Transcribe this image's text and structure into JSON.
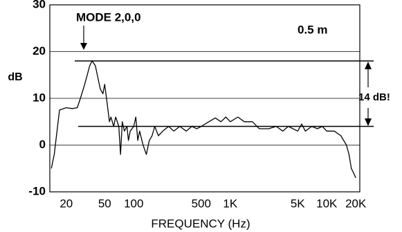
{
  "chart_data": {
    "type": "line",
    "ylabel": "dB",
    "xlabel": "FREQUENCY  (Hz)",
    "peak_label": "MODE 2,0,0",
    "distance_label": "0.5 m",
    "range_label": "14 dB!",
    "x": [
      14,
      15,
      17,
      20,
      23,
      26,
      28,
      31,
      35,
      37,
      40,
      45,
      48,
      50,
      53,
      56,
      58,
      62,
      65,
      70,
      73,
      76,
      80,
      85,
      88,
      92,
      100,
      105,
      110,
      115,
      125,
      135,
      145,
      155,
      165,
      180,
      200,
      230,
      260,
      300,
      350,
      400,
      450,
      500,
      600,
      700,
      800,
      900,
      1000,
      1200,
      1400,
      1700,
      2000,
      2500,
      3000,
      3500,
      4000,
      5000,
      5500,
      6000,
      7000,
      8000,
      9000,
      10000,
      12000,
      14000,
      16000,
      17000,
      18000,
      19000,
      20000
    ],
    "values": [
      -5,
      -2,
      7.5,
      8,
      7.8,
      8,
      10,
      13,
      17,
      18,
      17,
      12,
      11,
      13,
      9,
      5,
      6,
      4,
      6,
      4,
      -2,
      5,
      3,
      4,
      1,
      3,
      4,
      6,
      1,
      3,
      0,
      -2,
      1,
      2,
      4,
      2,
      3,
      4,
      3,
      4,
      3,
      4,
      3.5,
      4,
      5,
      5.8,
      5,
      6,
      5,
      6,
      5,
      5,
      3.5,
      3.5,
      4,
      3,
      4,
      3,
      4.5,
      3,
      4,
      3.5,
      4,
      3,
      3,
      2,
      0,
      -2,
      -5,
      -6,
      -7
    ],
    "color": "#000000",
    "reference_lines": [
      18,
      4
    ],
    "xlog": true,
    "xlim": [
      13.5,
      22000
    ],
    "ylim": [
      -10,
      30
    ],
    "xticks": [
      20,
      50,
      100,
      500,
      {
        "value": 1000,
        "label": "1K"
      },
      {
        "value": 5000,
        "label": "5K"
      },
      {
        "value": 10000,
        "label": "10K"
      },
      {
        "value": 20000,
        "label": "20K"
      }
    ],
    "yticks": [
      -10,
      0,
      10,
      20,
      30
    ],
    "grid": true
  }
}
